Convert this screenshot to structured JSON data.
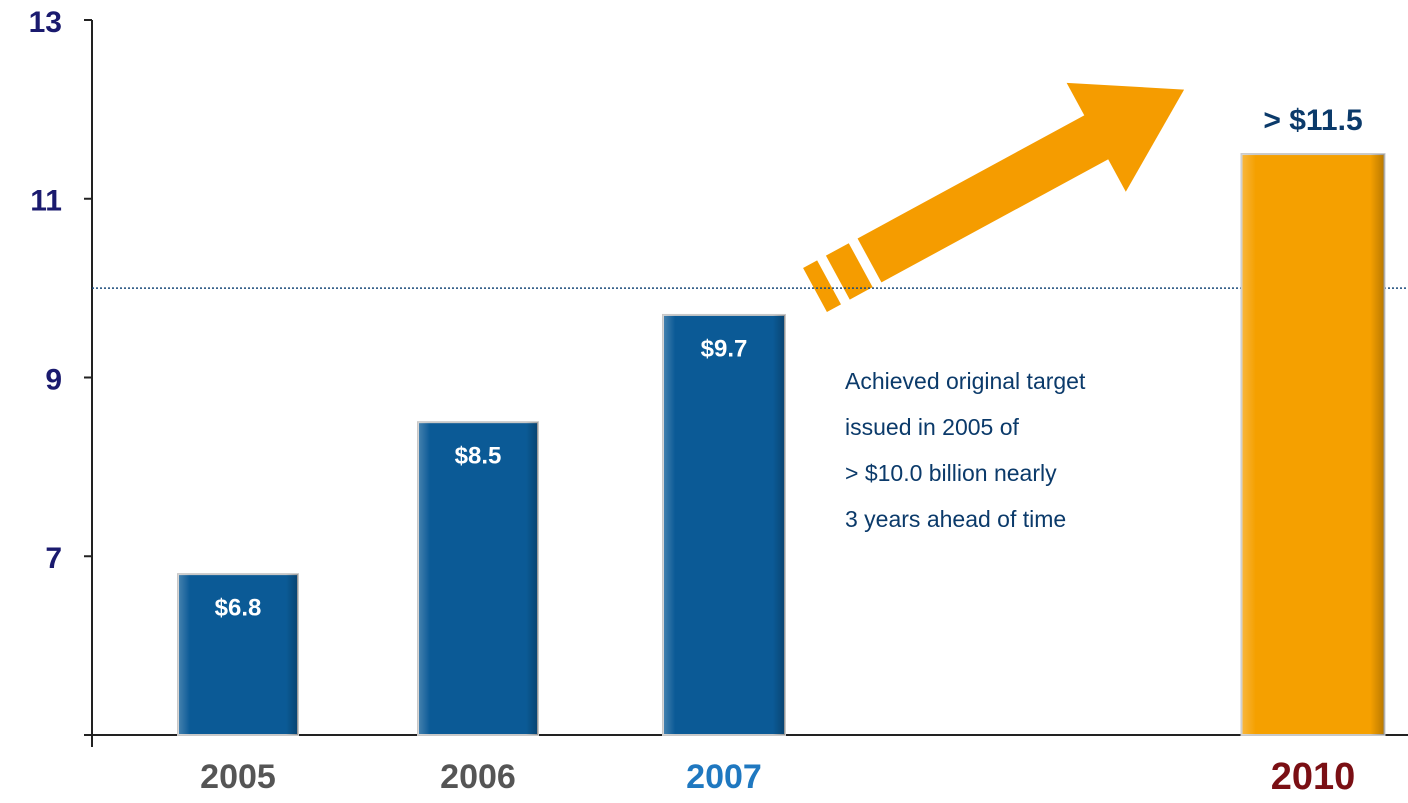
{
  "chart_data": {
    "type": "bar",
    "categories": [
      "2005",
      "2006",
      "2007",
      "2010"
    ],
    "values": [
      6.8,
      8.5,
      9.7,
      11.5
    ],
    "value_labels": [
      "$6.8",
      "$8.5",
      "$9.7",
      "> $11.5"
    ],
    "colors": [
      "#0b5a96",
      "#0b5a96",
      "#0b5a96",
      "#f5a000"
    ],
    "category_colors": [
      "#555555",
      "#555555",
      "#1f78c0",
      "#7a0f14"
    ],
    "ylim": [
      5,
      13
    ],
    "yticks": [
      7,
      9,
      11,
      13
    ],
    "target_line": 10,
    "annotation": [
      "Achieved original target",
      "issued in 2005 of",
      "> $10.0 billion nearly",
      "3 years ahead of time"
    ]
  }
}
